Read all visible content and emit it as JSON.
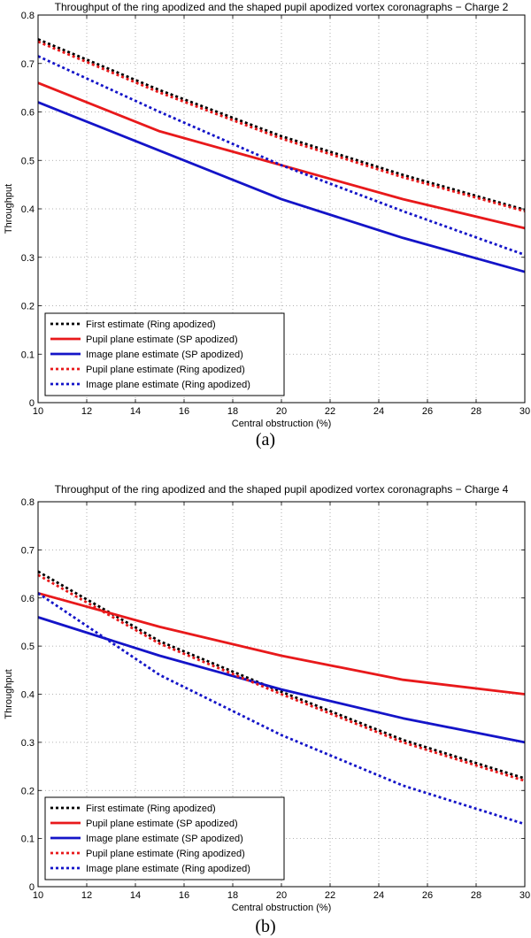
{
  "chart_data": [
    {
      "type": "line",
      "title": "Throughput of the ring apodized and the shaped pupil apodized vortex coronagraphs − Charge 2",
      "xlabel": "Central obstruction (%)",
      "ylabel": "Throughput",
      "xlim": [
        10,
        30
      ],
      "ylim": [
        0,
        0.8
      ],
      "xticks": [
        10,
        12,
        14,
        16,
        18,
        20,
        22,
        24,
        26,
        28,
        30
      ],
      "yticks": [
        0,
        0.1,
        0.2,
        0.3,
        0.4,
        0.5,
        0.6,
        0.7,
        0.8
      ],
      "grid": true,
      "legend_position": "bottom-left",
      "panel_label": "(a)",
      "series": [
        {
          "name": "First estimate (Ring apodized)",
          "color": "#000000",
          "dash": "dotted",
          "x": [
            10,
            15,
            20,
            25,
            30
          ],
          "y": [
            0.75,
            0.645,
            0.55,
            0.47,
            0.398
          ]
        },
        {
          "name": "Pupil plane estimate (SP apodized)",
          "color": "#e8191b",
          "dash": "solid",
          "x": [
            10,
            15,
            20,
            25,
            30
          ],
          "y": [
            0.66,
            0.56,
            0.49,
            0.42,
            0.36
          ]
        },
        {
          "name": "Image plane estimate (SP apodized)",
          "color": "#1414c8",
          "dash": "solid",
          "x": [
            10,
            15,
            20,
            25,
            30
          ],
          "y": [
            0.62,
            0.52,
            0.42,
            0.34,
            0.27
          ]
        },
        {
          "name": "Pupil plane estimate (Ring apodized)",
          "color": "#e8191b",
          "dash": "dotted",
          "x": [
            10,
            15,
            20,
            25,
            30
          ],
          "y": [
            0.745,
            0.64,
            0.545,
            0.465,
            0.395
          ]
        },
        {
          "name": "Image plane estimate (Ring apodized)",
          "color": "#1414c8",
          "dash": "dotted",
          "x": [
            10,
            15,
            20,
            25,
            30
          ],
          "y": [
            0.715,
            0.6,
            0.49,
            0.395,
            0.305
          ]
        }
      ]
    },
    {
      "type": "line",
      "title": "Throughput of the ring apodized and the shaped pupil apodized vortex coronagraphs − Charge 4",
      "xlabel": "Central obstruction (%)",
      "ylabel": "Throughput",
      "xlim": [
        10,
        30
      ],
      "ylim": [
        0,
        0.8
      ],
      "xticks": [
        10,
        12,
        14,
        16,
        18,
        20,
        22,
        24,
        26,
        28,
        30
      ],
      "yticks": [
        0,
        0.1,
        0.2,
        0.3,
        0.4,
        0.5,
        0.6,
        0.7,
        0.8
      ],
      "grid": true,
      "legend_position": "bottom-left",
      "panel_label": "(b)",
      "series": [
        {
          "name": "First estimate (Ring apodized)",
          "color": "#000000",
          "dash": "dotted",
          "x": [
            10,
            15,
            20,
            25,
            30
          ],
          "y": [
            0.655,
            0.51,
            0.405,
            0.305,
            0.225
          ]
        },
        {
          "name": "Pupil plane estimate (SP apodized)",
          "color": "#e8191b",
          "dash": "solid",
          "x": [
            10,
            15,
            20,
            25,
            30
          ],
          "y": [
            0.61,
            0.54,
            0.48,
            0.43,
            0.4
          ]
        },
        {
          "name": "Image plane estimate (SP apodized)",
          "color": "#1414c8",
          "dash": "solid",
          "x": [
            10,
            15,
            20,
            25,
            30
          ],
          "y": [
            0.56,
            0.48,
            0.41,
            0.35,
            0.3
          ]
        },
        {
          "name": "Pupil plane estimate (Ring apodized)",
          "color": "#e8191b",
          "dash": "dotted",
          "x": [
            10,
            15,
            20,
            25,
            30
          ],
          "y": [
            0.648,
            0.505,
            0.4,
            0.3,
            0.22
          ]
        },
        {
          "name": "Image plane estimate (Ring apodized)",
          "color": "#1414c8",
          "dash": "dotted",
          "x": [
            10,
            15,
            20,
            25,
            30
          ],
          "y": [
            0.61,
            0.44,
            0.315,
            0.21,
            0.13
          ]
        }
      ]
    }
  ]
}
